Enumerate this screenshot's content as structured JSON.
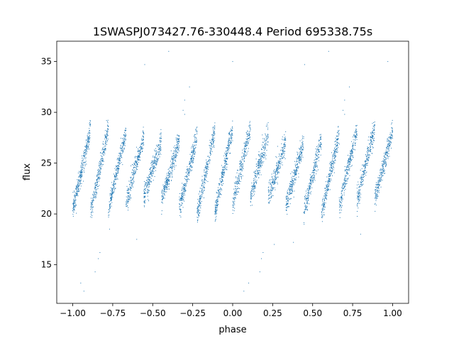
{
  "chart_data": {
    "type": "scatter",
    "title": "1SWASPJ073427.76-330448.4 Period 695338.75s",
    "xlabel": "phase",
    "ylabel": "flux",
    "xlim": [
      -1.1,
      1.1
    ],
    "ylim": [
      11.2,
      37.0
    ],
    "xticks": [
      -1.0,
      -0.75,
      -0.5,
      -0.25,
      0.0,
      0.25,
      0.5,
      0.75,
      1.0
    ],
    "xtick_labels": [
      "−1.00",
      "−0.75",
      "−0.50",
      "−0.25",
      "0.00",
      "0.25",
      "0.50",
      "0.75",
      "1.00"
    ],
    "yticks": [
      15,
      20,
      25,
      30,
      35
    ],
    "ytick_labels": [
      "15",
      "20",
      "25",
      "30",
      "35"
    ],
    "grid": false,
    "marker_color": "#1f77b4",
    "series": [
      {
        "description_pattern": "sawtooth",
        "x_range": [
          -1.0,
          1.0
        ],
        "flux_range": [
          19.5,
          29.0
        ],
        "n_cycles": 18,
        "n_points": 5200,
        "points": [
          [
            -0.93,
            12.4
          ],
          [
            -0.95,
            13.2
          ],
          [
            -0.86,
            14.3
          ],
          [
            -0.84,
            15.6
          ],
          [
            -0.83,
            16.2
          ],
          [
            -0.77,
            18.5
          ],
          [
            -0.55,
            34.7
          ],
          [
            -0.3,
            31.2
          ],
          [
            -0.31,
            30.2
          ],
          [
            -0.3,
            29.8
          ],
          [
            -0.22,
            19.2
          ],
          [
            -0.4,
            36.0
          ],
          [
            -0.27,
            32.5
          ],
          [
            0.0,
            35.0
          ],
          [
            0.07,
            12.4
          ],
          [
            0.1,
            13.2
          ],
          [
            0.17,
            14.3
          ],
          [
            0.18,
            15.6
          ],
          [
            0.19,
            16.2
          ],
          [
            0.26,
            17.0
          ],
          [
            0.45,
            34.7
          ],
          [
            0.7,
            31.2
          ],
          [
            0.69,
            30.2
          ],
          [
            0.7,
            29.8
          ],
          [
            0.6,
            36.0
          ],
          [
            0.73,
            32.5
          ],
          [
            0.97,
            35.0
          ],
          [
            0.8,
            18.0
          ],
          [
            -0.6,
            17.5
          ],
          [
            0.38,
            17.2
          ]
        ]
      }
    ]
  }
}
